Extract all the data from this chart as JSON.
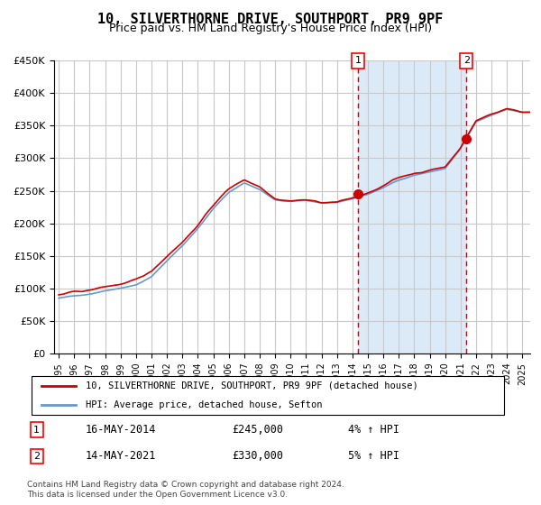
{
  "title": "10, SILVERTHORNE DRIVE, SOUTHPORT, PR9 9PF",
  "subtitle": "Price paid vs. HM Land Registry's House Price Index (HPI)",
  "red_label": "10, SILVERTHORNE DRIVE, SOUTHPORT, PR9 9PF (detached house)",
  "blue_label": "HPI: Average price, detached house, Sefton",
  "annotation1_date": "16-MAY-2014",
  "annotation1_price": "£245,000",
  "annotation1_hpi": "4% ↑ HPI",
  "annotation2_date": "14-MAY-2021",
  "annotation2_price": "£330,000",
  "annotation2_hpi": "5% ↑ HPI",
  "footnote": "Contains HM Land Registry data © Crown copyright and database right 2024.\nThis data is licensed under the Open Government Licence v3.0.",
  "ylim": [
    0,
    450000
  ],
  "yticks": [
    0,
    50000,
    100000,
    150000,
    200000,
    250000,
    300000,
    350000,
    400000,
    450000
  ],
  "background_color": "#ffffff",
  "plot_bg_color": "#ffffff",
  "shade_color": "#dce9f7",
  "grid_color": "#c8c8c8",
  "red_color": "#cc0000",
  "blue_color": "#6699cc",
  "title_fontsize": 11,
  "subtitle_fontsize": 9,
  "purchase1_year": 2014.37,
  "purchase1_value": 245000,
  "purchase2_year": 2021.37,
  "purchase2_value": 330000
}
